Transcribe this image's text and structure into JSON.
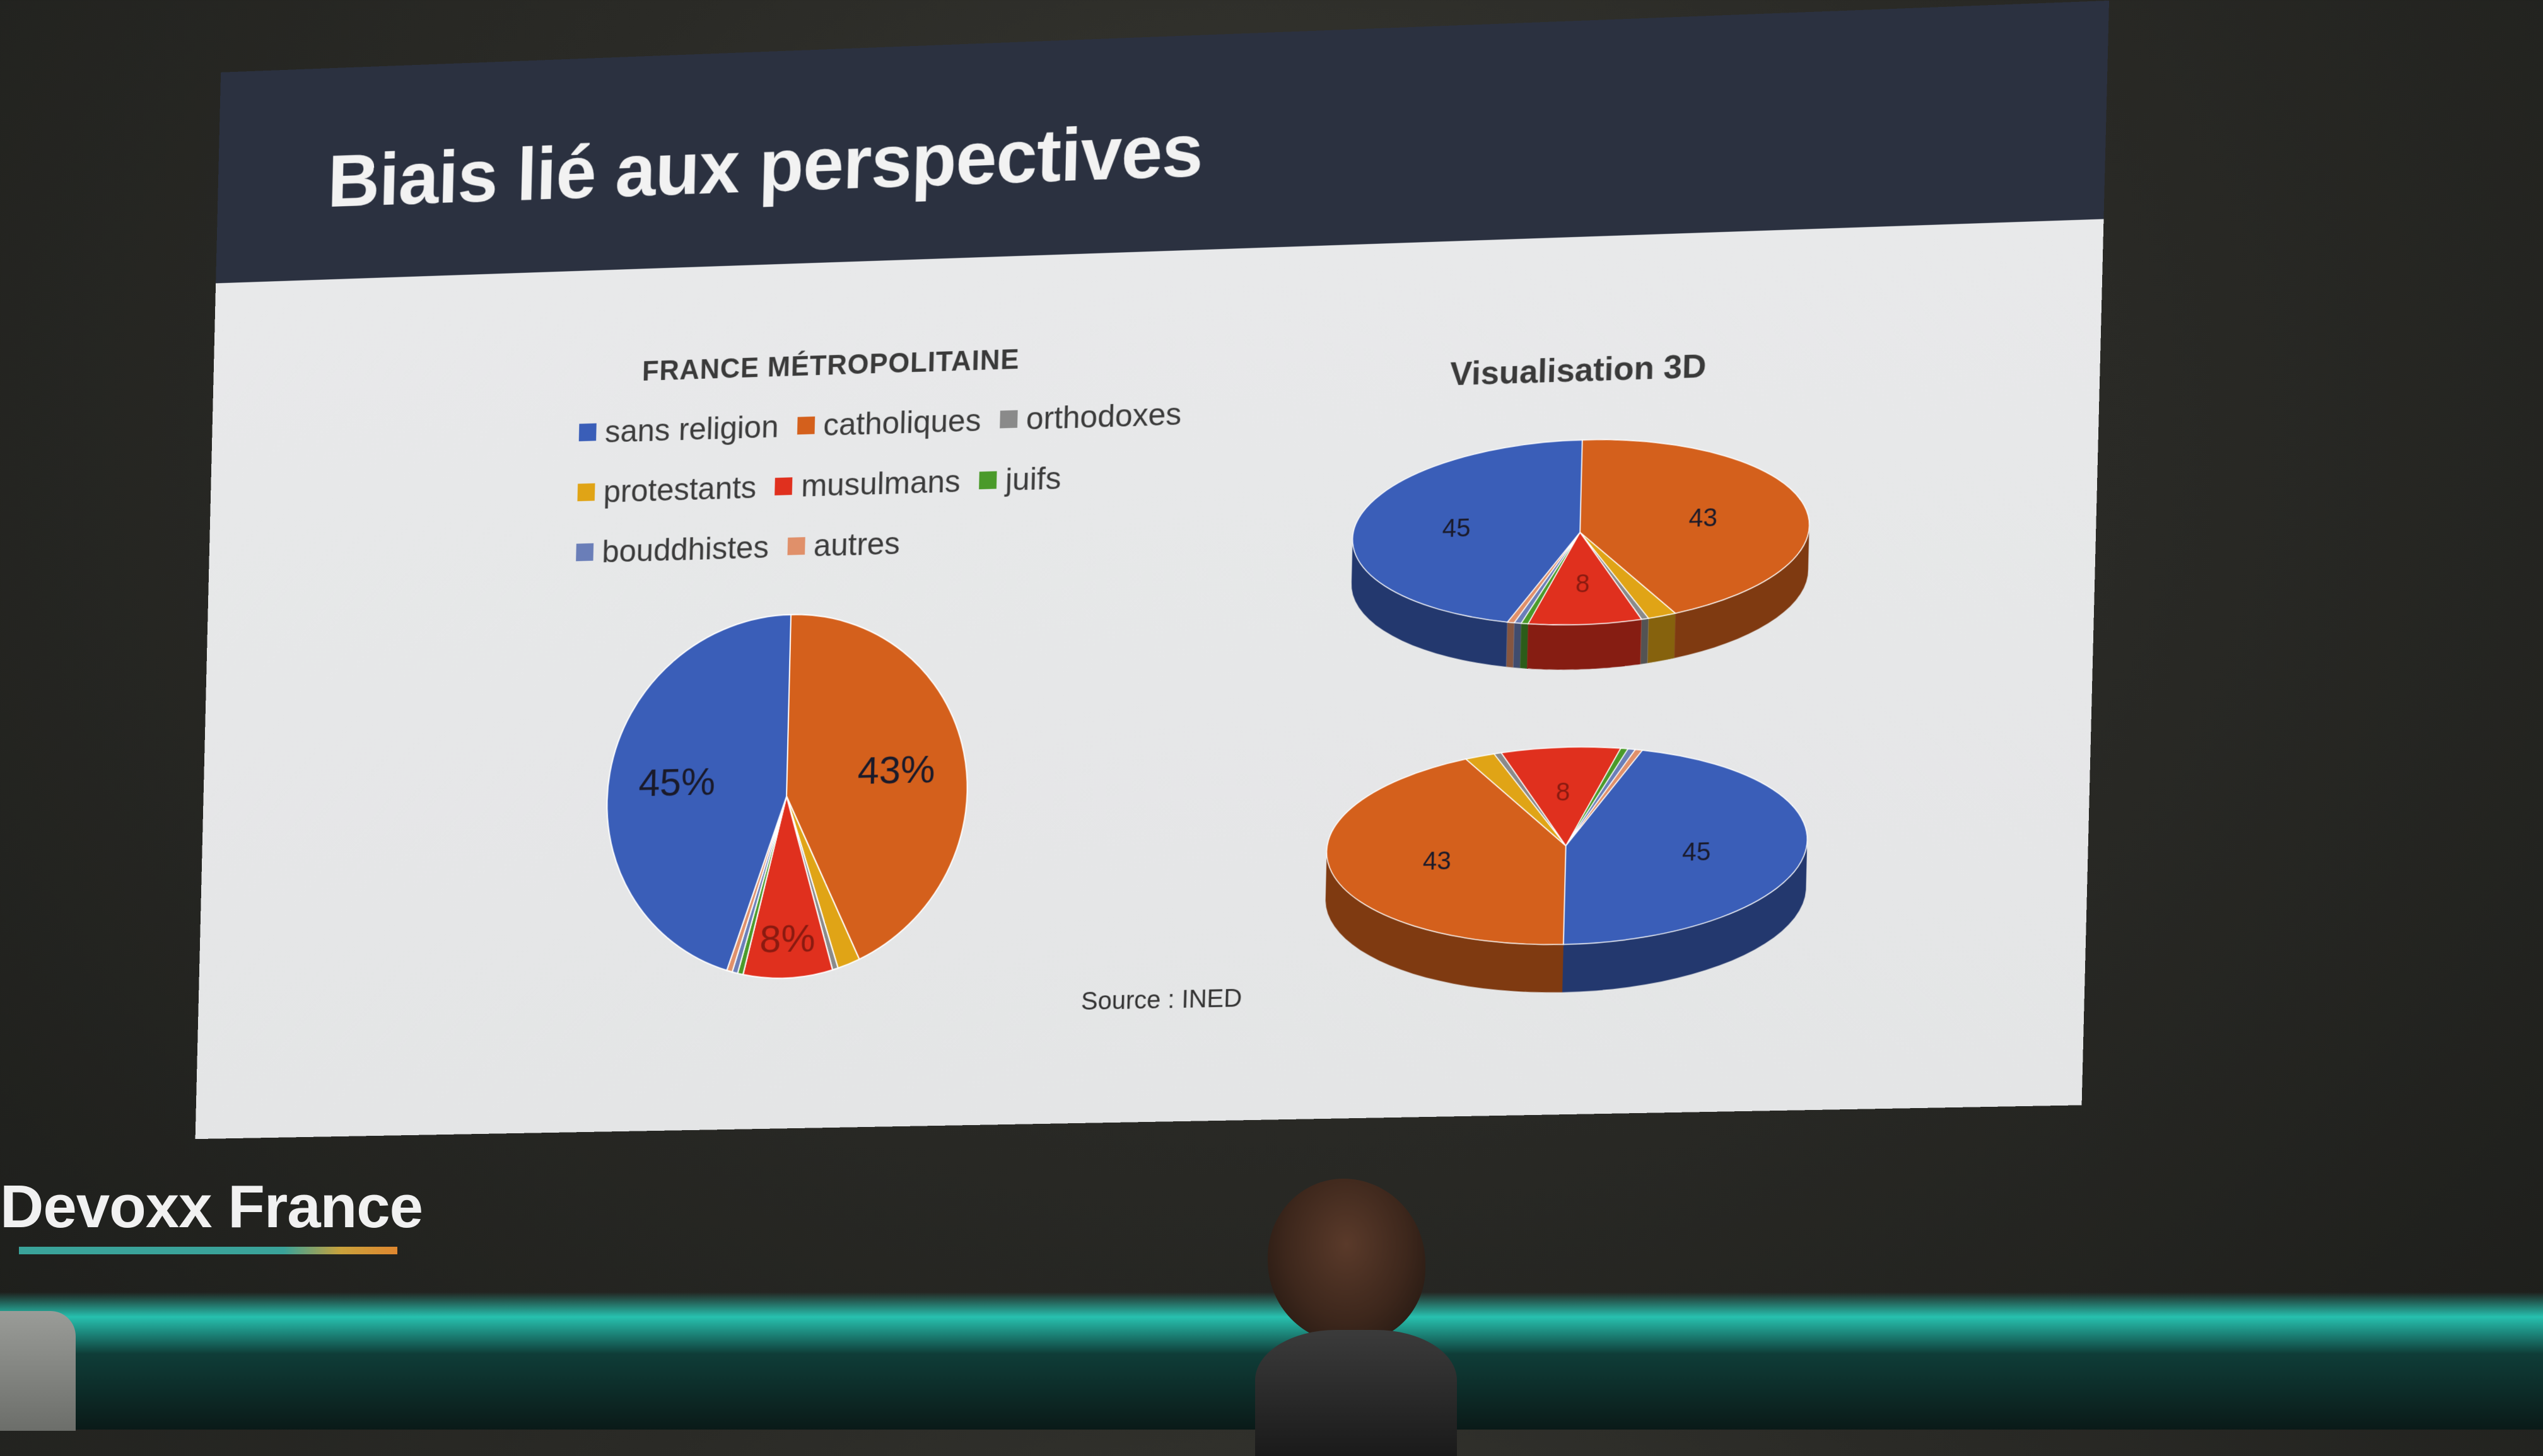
{
  "slide": {
    "title": "Biais lié aux perspectives",
    "source": "Source : INED"
  },
  "pie2d": {
    "title": "FRANCE MÉTROPOLITAINE",
    "labels": [
      "45%",
      "43%",
      "8%"
    ]
  },
  "legend": [
    {
      "label": "sans religion",
      "color": "#3a5eb8"
    },
    {
      "label": "catholiques",
      "color": "#d4601c"
    },
    {
      "label": "orthodoxes",
      "color": "#8a8a8a"
    },
    {
      "label": "protestants",
      "color": "#e0a416"
    },
    {
      "label": "musulmans",
      "color": "#e0301e"
    },
    {
      "label": "juifs",
      "color": "#4a9a2a"
    },
    {
      "label": "bouddhistes",
      "color": "#6a7eb8"
    },
    {
      "label": "autres",
      "color": "#e0906a"
    }
  ],
  "pie3d": {
    "title": "Visualisation 3D",
    "top_labels": [
      "45",
      "43",
      "8"
    ],
    "bottom_labels": [
      "43",
      "45",
      "8"
    ]
  },
  "chart_data": [
    {
      "type": "pie",
      "title": "FRANCE MÉTROPOLITAINE",
      "categories": [
        "sans religion",
        "catholiques",
        "orthodoxes",
        "protestants",
        "musulmans",
        "juifs",
        "bouddhistes",
        "autres"
      ],
      "values": [
        45,
        43,
        0.5,
        2,
        8,
        0.5,
        0.5,
        0.5
      ],
      "data_labels": [
        "45%",
        "43%",
        "",
        "",
        "8%",
        "",
        "",
        ""
      ],
      "legend": "top"
    },
    {
      "type": "pie",
      "title": "Visualisation 3D",
      "categories": [
        "sans religion",
        "catholiques",
        "orthodoxes",
        "protestants",
        "musulmans",
        "juifs",
        "bouddhistes",
        "autres"
      ],
      "values": [
        45,
        43,
        0.5,
        2,
        8,
        0.5,
        0.5,
        0.5
      ],
      "data_labels": [
        "45",
        "43",
        "",
        "",
        "8",
        "",
        "",
        ""
      ]
    },
    {
      "type": "pie",
      "categories": [
        "sans religion",
        "catholiques",
        "orthodoxes",
        "protestants",
        "musulmans",
        "juifs",
        "bouddhistes",
        "autres"
      ],
      "values": [
        45,
        43,
        0.5,
        2,
        8,
        0.5,
        0.5,
        0.5
      ],
      "data_labels": [
        "45",
        "43",
        "",
        "",
        "8",
        "",
        "",
        ""
      ]
    }
  ],
  "event": {
    "logo": "Devoxx France"
  }
}
